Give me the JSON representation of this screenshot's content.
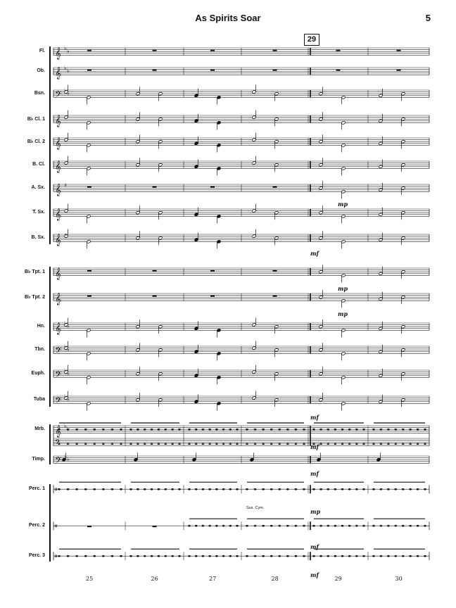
{
  "header": {
    "title": "As Spirits Soar",
    "page_number": "5"
  },
  "rehearsal_mark": "29",
  "instruments": [
    {
      "label": "Fl.",
      "clef": "treble",
      "key": "Bb"
    },
    {
      "label": "Ob.",
      "clef": "treble",
      "key": "Bb"
    },
    {
      "label": "Bsn.",
      "clef": "bass",
      "key": "Bb"
    },
    {
      "label": "B♭ Cl. 1",
      "clef": "treble",
      "key": "C"
    },
    {
      "label": "B♭ Cl. 2",
      "clef": "treble",
      "key": "C"
    },
    {
      "label": "B. Cl.",
      "clef": "treble",
      "key": "C"
    },
    {
      "label": "A. Sx.",
      "clef": "treble",
      "key": "G"
    },
    {
      "label": "T. Sx.",
      "clef": "treble",
      "key": "C"
    },
    {
      "label": "B. Sx.",
      "clef": "treble",
      "key": "G"
    },
    {
      "label": "B♭ Tpt. 1",
      "clef": "treble",
      "key": "C"
    },
    {
      "label": "B♭ Tpt. 2",
      "clef": "treble",
      "key": "C"
    },
    {
      "label": "Hn.",
      "clef": "treble",
      "key": "Bb"
    },
    {
      "label": "Tbn.",
      "clef": "bass",
      "key": "Bb"
    },
    {
      "label": "Euph.",
      "clef": "bass",
      "key": "Bb"
    },
    {
      "label": "Tuba",
      "clef": "bass",
      "key": "Bb"
    },
    {
      "label": "Mrb.",
      "clef": "grand",
      "key": "Bb"
    },
    {
      "label": "Timp.",
      "clef": "bass",
      "key": "Bb"
    },
    {
      "label": "Perc. 1",
      "clef": "perc",
      "key": ""
    },
    {
      "label": "Perc. 2",
      "clef": "perc",
      "key": ""
    },
    {
      "label": "Perc. 3",
      "clef": "perc",
      "key": ""
    }
  ],
  "measure_numbers": [
    "25",
    "26",
    "27",
    "28",
    "29",
    "30"
  ],
  "dynamics": {
    "asx": "mp",
    "bsx": "mf",
    "tpt1": "mp",
    "tpt2": "mp",
    "tuba": "mf",
    "mrb": "mf",
    "timp": "mf",
    "perc1": "mp",
    "perc2": "mf",
    "perc3": "mf"
  },
  "annotations": {
    "sus_cym": "Sus. Cym."
  }
}
